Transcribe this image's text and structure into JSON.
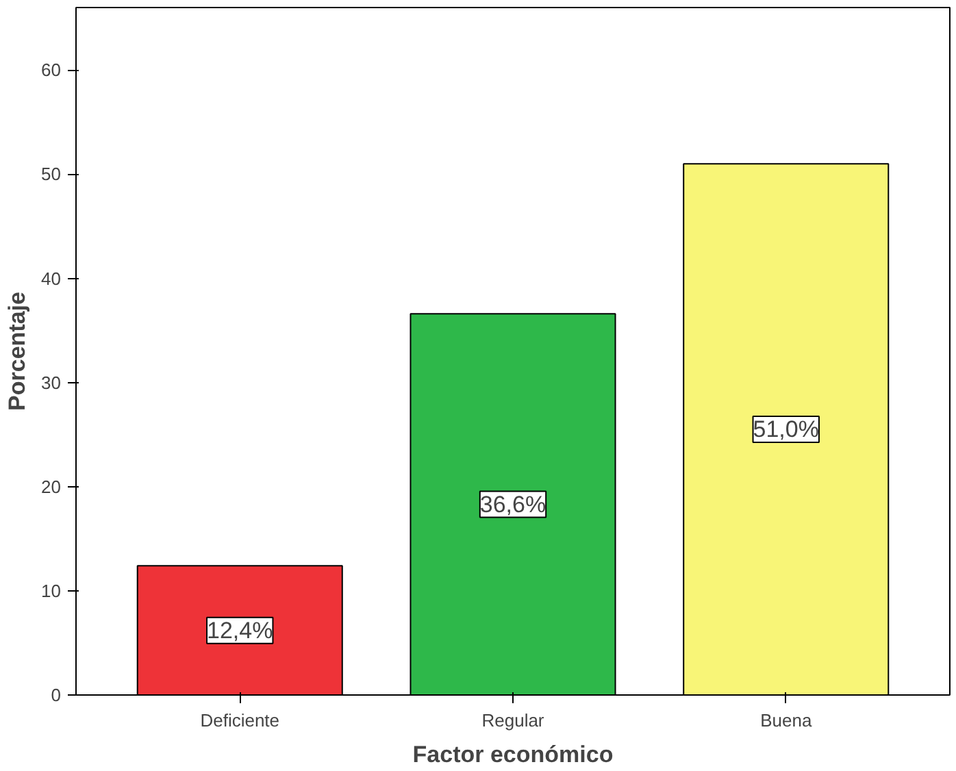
{
  "chart_data": {
    "type": "bar",
    "xlabel": "Factor económico",
    "ylabel": "Porcentaje",
    "categories": [
      "Deficiente",
      "Regular",
      "Buena"
    ],
    "values": [
      12.4,
      36.6,
      51.0
    ],
    "colors": [
      "#ee3338",
      "#2eb84a",
      "#f8f577"
    ],
    "value_labels": [
      "12,4%",
      "36,6%",
      "51,0%"
    ],
    "ylim": [
      0,
      66
    ],
    "yticks": [
      0,
      10,
      20,
      30,
      40,
      50,
      60
    ],
    "grid": false
  }
}
